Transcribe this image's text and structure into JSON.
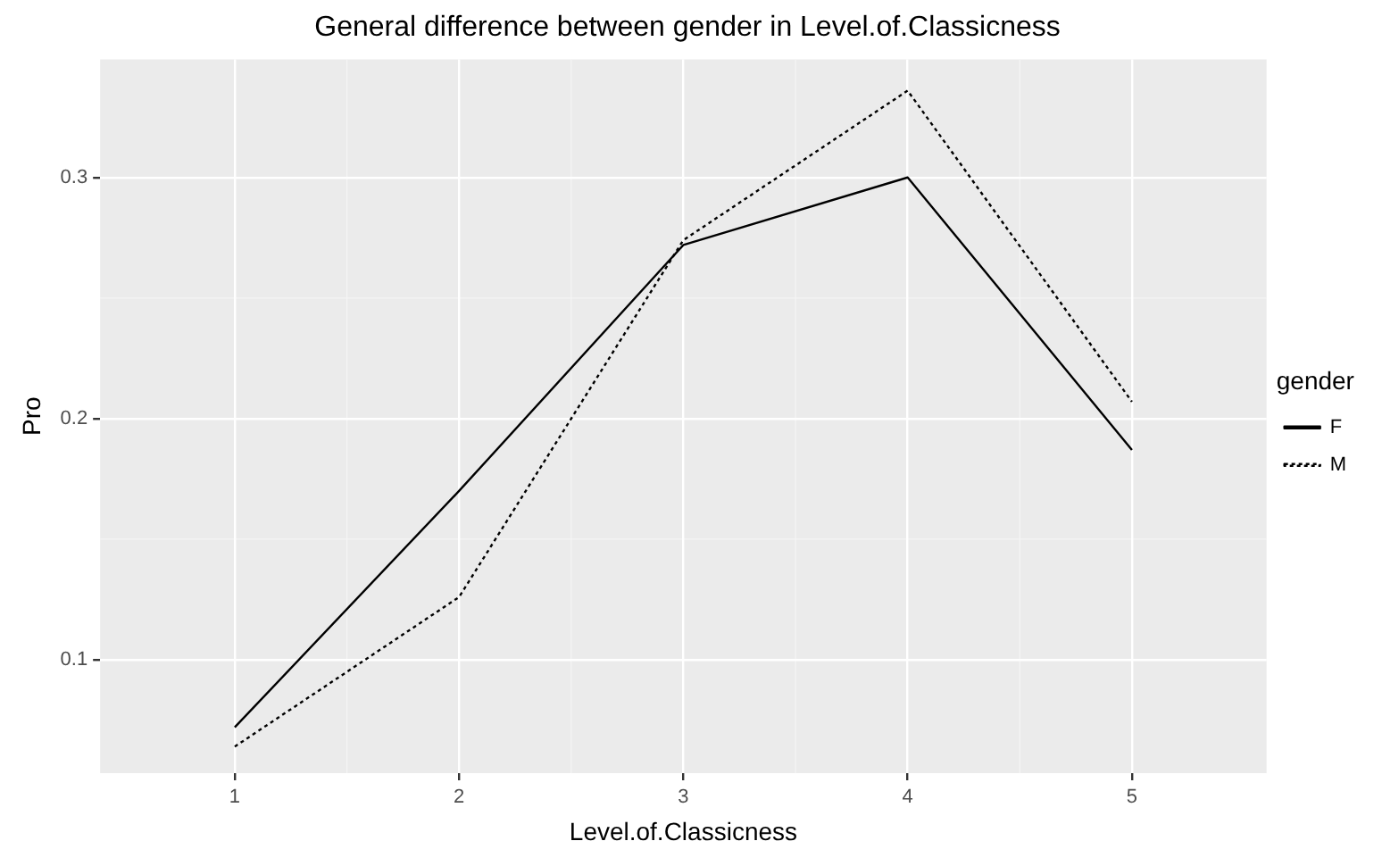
{
  "chart_data": {
    "type": "line",
    "title": "General difference between gender in Level.of.Classicness",
    "xlabel": "Level.of.Classicness",
    "ylabel": "Pro",
    "legend_title": "gender",
    "x": [
      1,
      2,
      3,
      4,
      5
    ],
    "series": [
      {
        "name": "F",
        "color": "#000000",
        "line_style": "solid",
        "values": [
          0.072,
          0.17,
          0.272,
          0.3,
          0.187
        ]
      },
      {
        "name": "M",
        "color": "#000000",
        "line_style": "dotted",
        "values": [
          0.064,
          0.126,
          0.274,
          0.336,
          0.207
        ]
      }
    ],
    "xlim": [
      0.4,
      5.6
    ],
    "xticks": [
      1,
      2,
      3,
      4,
      5
    ],
    "ylim": [
      0.053,
      0.349
    ],
    "yticks": [
      0.1,
      0.2,
      0.3
    ],
    "grid": true,
    "legend": "right",
    "marker": "none"
  }
}
